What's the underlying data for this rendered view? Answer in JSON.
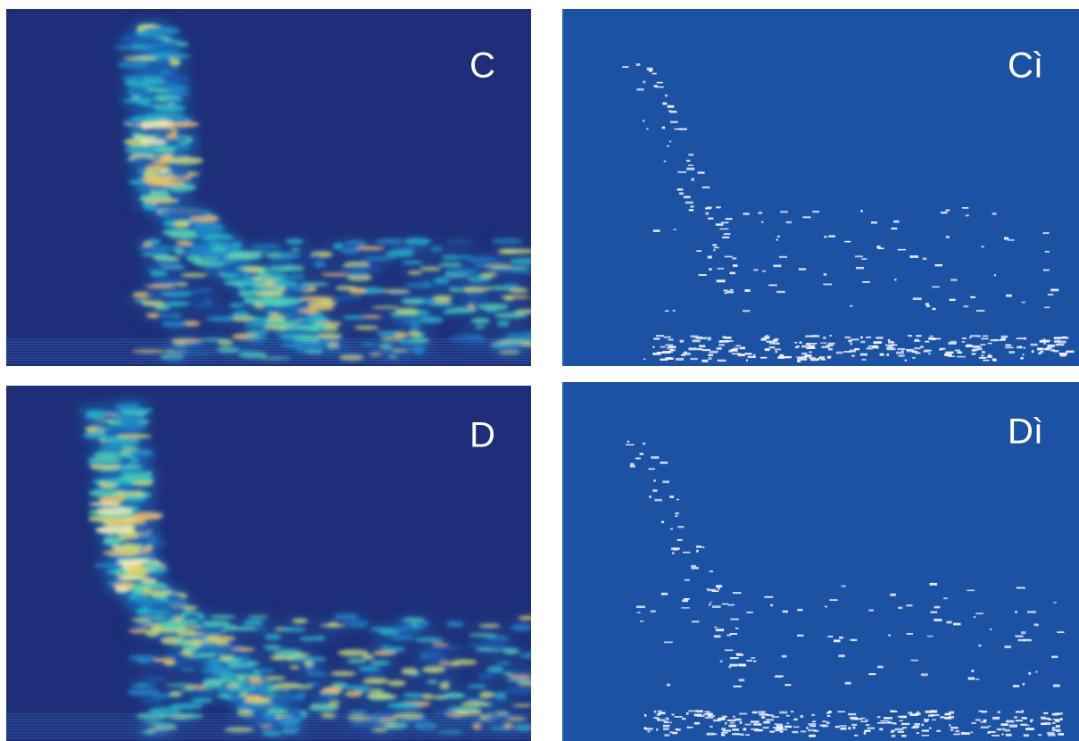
{
  "panels": [
    {
      "label": "C"
    },
    {
      "label": "Cì"
    },
    {
      "label": "D"
    },
    {
      "label": "Dì"
    }
  ]
}
